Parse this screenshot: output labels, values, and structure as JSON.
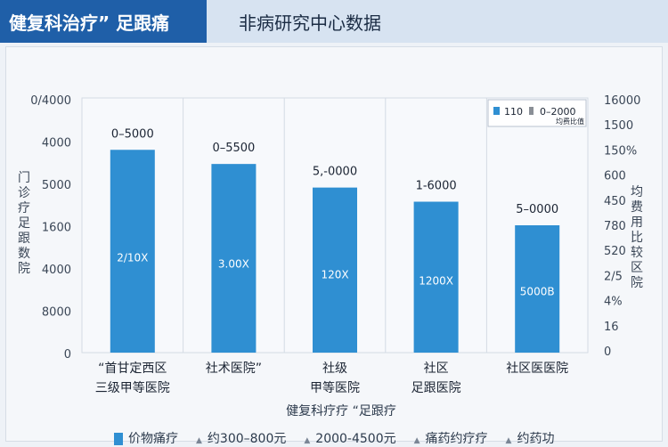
{
  "header": {
    "tab_left": "健复科治疗” 足跟痛",
    "tab_right": "非病研究中心数据"
  },
  "chart_data": {
    "type": "bar",
    "xlabel": "健复科疗疗 “足跟疗",
    "ylabel_left": "门诊疗足跟数院",
    "ylabel_right": "均费用比较区院",
    "left_ticks": [
      "0/4000",
      "4000",
      "5000",
      "1600",
      "4000",
      "8000",
      "0"
    ],
    "right_ticks": [
      "16000",
      "1500",
      "150%",
      "600",
      "450",
      "780",
      "520",
      "2/5",
      "4%",
      "16",
      "0"
    ],
    "categories": [
      "“首甘定西区\n三级甲等医院",
      "社术医院”",
      "社级\n甲等医院",
      "社区\n足跟医院",
      "社区医医院"
    ],
    "values": [
      43,
      40,
      35,
      32,
      27
    ],
    "ylim": [
      0,
      54
    ],
    "top_labels": [
      "0–5000",
      "0–5500",
      "5,-0000",
      "1-6000",
      "5–0000"
    ],
    "inside_labels": [
      "2/10X",
      "3.00X",
      "120X",
      "1200X",
      "5000B"
    ],
    "legend_top": [
      "110",
      "0–2000",
      "均费比值"
    ],
    "legend_bottom": [
      "价物痛疗",
      "约300–800元",
      "2000-4500元",
      "痛药约疗疗",
      "约药功"
    ],
    "colors": {
      "bar": "#2f8fd2",
      "grid": "#d4dbe4",
      "axis_text": "#3a4656"
    }
  }
}
